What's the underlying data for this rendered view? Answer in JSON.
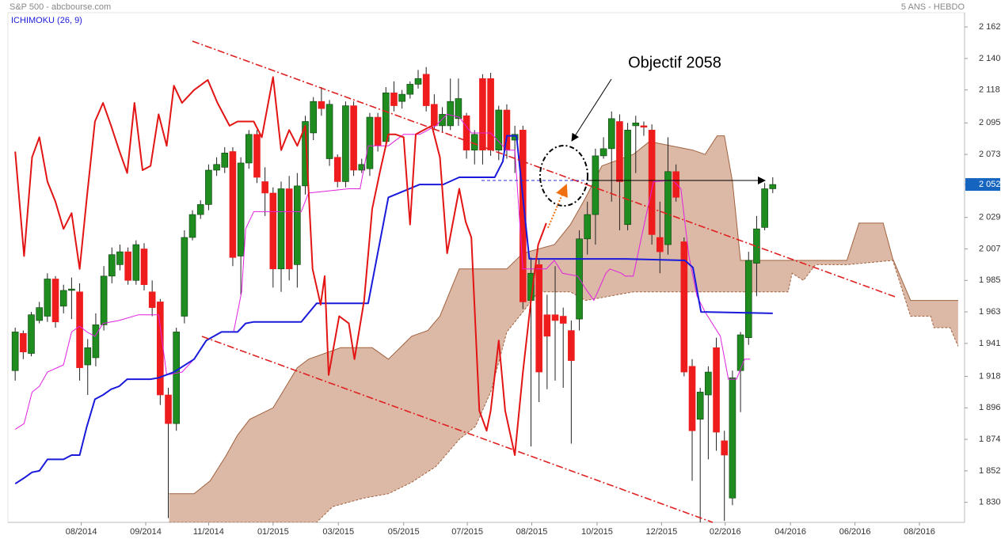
{
  "chart_data": {
    "type": "candlestick",
    "title": "S&P 500 - abcbourse.com",
    "subtitle": "5 ANS - HEBDO",
    "indicator": "ICHIMOKU (26, 9)",
    "annotation": "Objectif 2058",
    "up_color": "#1e8c1e",
    "down_color": "#ee1c1c",
    "xlim": [
      -0.9,
      117.8
    ],
    "ylim": [
      1816,
      2172
    ],
    "xticks": [
      {
        "value": 8.2,
        "label": "08/2014"
      },
      {
        "value": 16.2,
        "label": "09/2014"
      },
      {
        "value": 24,
        "label": "11/2014"
      },
      {
        "value": 32,
        "label": "01/2015"
      },
      {
        "value": 40.1,
        "label": "03/2015"
      },
      {
        "value": 48.2,
        "label": "05/2015"
      },
      {
        "value": 56.1,
        "label": "07/2015"
      },
      {
        "value": 64.1,
        "label": "08/2015"
      },
      {
        "value": 72.2,
        "label": "10/2015"
      },
      {
        "value": 80.2,
        "label": "12/2015"
      },
      {
        "value": 88.1,
        "label": "02/2016"
      },
      {
        "value": 96.2,
        "label": "04/2016"
      },
      {
        "value": 104.2,
        "label": "06/2016"
      },
      {
        "value": 112.2,
        "label": "08/2016"
      }
    ],
    "yticks": [
      {
        "value": 2162,
        "label": "2 162"
      },
      {
        "value": 2140,
        "label": "2 140"
      },
      {
        "value": 2118,
        "label": "2 118"
      },
      {
        "value": 2095,
        "label": "2 095"
      },
      {
        "value": 2073,
        "label": "2 073"
      },
      {
        "value": 2052,
        "label": "2 052"
      },
      {
        "value": 2029,
        "label": "2 029"
      },
      {
        "value": 2007,
        "label": "2 007"
      },
      {
        "value": 1985,
        "label": "1 985"
      },
      {
        "value": 1963,
        "label": "1 963"
      },
      {
        "value": 1941,
        "label": "1 941"
      },
      {
        "value": 1918,
        "label": "1 918"
      },
      {
        "value": 1896,
        "label": "1 896"
      },
      {
        "value": 1874,
        "label": "1 874"
      },
      {
        "value": 1852,
        "label": "1 852"
      },
      {
        "value": 1830,
        "label": "1 830"
      }
    ],
    "last_price": {
      "value": 2052,
      "label": "2 052",
      "color": "#1565c0"
    },
    "open": [
      1922,
      1948,
      1934,
      1957,
      1960,
      1986,
      1967,
      1978,
      1977,
      1926,
      1931,
      1954,
      1988,
      1996,
      2005,
      1985,
      2007,
      1977,
      1970,
      1905,
      1885,
      1960,
      2015,
      2031,
      2038,
      2062,
      2064,
      2075,
      2002,
      2067,
      2087,
      2054,
      2046,
      1993,
      2049,
      1996,
      2051,
      2088,
      2110,
      2070,
      2071,
      2054,
      2107,
      2062,
      2063,
      2099,
      2082,
      2116,
      2110,
      2115,
      2122,
      2129,
      2108,
      2093,
      2093,
      2098,
      2100,
      2076,
      2126,
      2126,
      2076,
      2104,
      2083,
      2090,
      1971,
      1996,
      1961,
      1961,
      1960,
      1950,
      1958,
      2014,
      2031,
      2072,
      2077,
      2096,
      2024,
      2093,
      2093,
      2090,
      2015,
      2010,
      2061,
      2012,
      1925,
      1888,
      1905,
      1938,
      1873,
      1833,
      1922,
      1945,
      1997,
      2022,
      2049
    ],
    "high": [
      1952,
      1950,
      1963,
      1970,
      1990,
      1988,
      1982,
      1987,
      1983,
      1944,
      1962,
      1995,
      2008,
      2010,
      2008,
      2013,
      2011,
      1985,
      1972,
      1910,
      1952,
      2020,
      2034,
      2041,
      2066,
      2071,
      2078,
      2078,
      2071,
      2090,
      2090,
      2064,
      2050,
      2054,
      2058,
      2060,
      2100,
      2113,
      2120,
      2111,
      2073,
      2110,
      2110,
      2070,
      2102,
      2102,
      2120,
      2124,
      2118,
      2124,
      2132,
      2134,
      2115,
      2106,
      2126,
      2126,
      2102,
      2090,
      2129,
      2130,
      2107,
      2108,
      2093,
      2093,
      2001,
      2000,
      1975,
      1995,
      1966,
      1957,
      2020,
      2040,
      2077,
      2085,
      2103,
      2101,
      2095,
      2100,
      2096,
      2094,
      2040,
      2085,
      2066,
      2015,
      1930,
      1910,
      1925,
      1945,
      1880,
      1922,
      1949,
      2005,
      2030,
      2053,
      2057
    ],
    "low": [
      1915,
      1930,
      1932,
      1955,
      1956,
      1952,
      1962,
      1958,
      1915,
      1905,
      1925,
      1950,
      1983,
      1992,
      1982,
      1982,
      1978,
      1960,
      1898,
      1819,
      1880,
      1955,
      2013,
      2028,
      2034,
      2058,
      2060,
      1995,
      1975,
      2063,
      2053,
      2030,
      1980,
      1977,
      1985,
      1980,
      2045,
      2083,
      2100,
      2065,
      2050,
      2050,
      2058,
      2060,
      2058,
      2075,
      2078,
      2103,
      2105,
      2112,
      2119,
      2103,
      2090,
      2088,
      2090,
      2093,
      2070,
      2066,
      2066,
      2072,
      2069,
      2070,
      2060,
      1965,
      1869,
      1900,
      1909,
      1915,
      1910,
      1871,
      1950,
      2003,
      2010,
      2070,
      2040,
      2020,
      2020,
      2060,
      2086,
      2010,
      1990,
      2003,
      2040,
      1918,
      1845,
      1815,
      1860,
      1866,
      1817,
      1828,
      1893,
      1940,
      1974,
      2020,
      2046
    ],
    "close": [
      1949,
      1935,
      1961,
      1966,
      1986,
      1956,
      1978,
      1979,
      1924,
      1938,
      1954,
      1988,
      2003,
      2005,
      1985,
      2010,
      1982,
      1966,
      1905,
      1885,
      1949,
      2015,
      2031,
      2038,
      2062,
      2066,
      2074,
      2001,
      2067,
      2087,
      2057,
      2046,
      1993,
      2049,
      1993,
      2051,
      2096,
      2110,
      2105,
      2108,
      2054,
      2107,
      2062,
      2066,
      2099,
      2079,
      2116,
      2107,
      2115,
      2122,
      2126,
      2107,
      2093,
      2101,
      2110,
      2112,
      2076,
      2087,
      2076,
      2076,
      2104,
      2076,
      2087,
      1970,
      1990,
      1921,
      1946,
      1957,
      1955,
      1929,
      2014,
      2031,
      2072,
      2077,
      2098,
      2054,
      2090,
      2095,
      2092,
      2017,
      2005,
      2061,
      2043,
      1921,
      1880,
      1907,
      1921,
      1879,
      1863,
      1917,
      1947,
      1999,
      2021,
      2049,
      2052
    ],
    "cloud": {
      "fill": "#dcb9a6",
      "stroke": "#a0623f",
      "upper": {
        "x": [
          19.1,
          22.2,
          24.2,
          26.1,
          27.6,
          29.1,
          32,
          33.5,
          35,
          36.4,
          40.4,
          44.3,
          46.3,
          49.2,
          51.2,
          52.7,
          55.1,
          61,
          63,
          66.9,
          68.9,
          70.8,
          72.8,
          76.7,
          78.7,
          84.1,
          85.6,
          87.1,
          88,
          89,
          90,
          96.4,
          103.2,
          104.7,
          107.7,
          108.9,
          111.1,
          117
        ],
        "values": [
          1836,
          1836,
          1845,
          1862,
          1877,
          1888,
          1896,
          1910,
          1924,
          1930,
          1938,
          1938,
          1930,
          1946,
          1950,
          1960,
          1993,
          1993,
          2004,
          2010,
          2024,
          2043,
          2065,
          2073,
          2082,
          2076,
          2073,
          2086,
          2086,
          2054,
          1999,
          1999,
          1999,
          2025,
          2025,
          2000,
          1971,
          1971
        ]
      },
      "lower": {
        "x": [
          19.1,
          37.4,
          39.4,
          43.3,
          46.3,
          49.2,
          52.2,
          55.1,
          57.1,
          59,
          61,
          63,
          64.9,
          68.9,
          70.8,
          76.7,
          95.9,
          96.4,
          97.8,
          99.3,
          103.2,
          108.9,
          111.1,
          113.6,
          114,
          116,
          117
        ],
        "values": [
          1816,
          1816,
          1827,
          1833,
          1836,
          1844,
          1855,
          1874,
          1883,
          1907,
          1949,
          1963,
          1977,
          1977,
          1971,
          1977,
          1977,
          1990,
          1985,
          1996,
          1996,
          1999,
          1960,
          1960,
          1952,
          1952,
          1939
        ]
      }
    },
    "overlays": [
      {
        "color": "#e020e0",
        "width": 1,
        "x": [
          0,
          1.1,
          2.1,
          3,
          4,
          6,
          7,
          8,
          8.9,
          9.9,
          10.9,
          12.9,
          15.3,
          17.8,
          18.8,
          20.7,
          22.2,
          23.7,
          25.6,
          27.1,
          28.1,
          28.6,
          29.6,
          35.5,
          36.4,
          41.4,
          42.8,
          43.8,
          46.3,
          48.2,
          50.2,
          52.2,
          53.6,
          55.1,
          56.6,
          59,
          61,
          62,
          63,
          65.9,
          66.9,
          67.9,
          69.8,
          70.8,
          71.8,
          73.3,
          73.8,
          75.2,
          75.7,
          76.7,
          77.7,
          79.2,
          81.6,
          82.6,
          83.6,
          84.6,
          85.6,
          87.5,
          88.5,
          89.5,
          90.5,
          91.2
        ],
        "values": [
          1881,
          1885,
          1907,
          1911,
          1921,
          1926,
          1949,
          1953,
          1949,
          1946,
          1955,
          1957,
          1961,
          1961,
          1919,
          1921,
          1930,
          1943,
          1949,
          1949,
          1977,
          2021,
          2033,
          2033,
          2046,
          2049,
          2049,
          2079,
          2079,
          2087,
          2087,
          2093,
          2101,
          2099,
          2088,
          2088,
          2076,
          2076,
          1993,
          1993,
          1999,
          1990,
          1988,
          1979,
          1971,
          1990,
          1993,
          1990,
          1988,
          1988,
          2015,
          2054,
          2055,
          2049,
          2002,
          1974,
          1963,
          1946,
          1916,
          1916,
          1930,
          1930
        ]
      },
      {
        "color": "#1a1adb",
        "width": 2,
        "x": [
          0,
          1.1,
          2.1,
          3,
          4,
          6,
          7,
          8,
          8.9,
          9.9,
          10.9,
          11.9,
          12.9,
          13.9,
          16.8,
          17.8,
          19.7,
          22.2,
          23.7,
          25.6,
          27.6,
          28.6,
          29.6,
          35.5,
          37.4,
          43.8,
          46.3,
          50.2,
          53.1,
          55.1,
          59.5,
          60.5,
          61,
          62.2,
          63.8,
          75.7,
          83.1,
          84.1,
          85.1,
          94
        ],
        "values": [
          1843,
          1847,
          1851,
          1852,
          1860,
          1860,
          1863,
          1863,
          1883,
          1902,
          1905,
          1909,
          1911,
          1916,
          1916,
          1917,
          1921,
          1930,
          1943,
          1949,
          1949,
          1955,
          1956,
          1956,
          1969,
          1969,
          2043,
          2052,
          2052,
          2057,
          2057,
          2068,
          2086,
          2086,
          2000,
          2000,
          1999,
          1994,
          1963,
          1962
        ]
      },
      {
        "color": "#e31414",
        "width": 2,
        "x": [
          0,
          1.1,
          2.1,
          3,
          4,
          5,
          6,
          7,
          8,
          8.9,
          9.9,
          10.9,
          11.9,
          12.9,
          13.9,
          14.8,
          15.8,
          16.8,
          17.8,
          18.8,
          19.7,
          20.7,
          22.2,
          23.9,
          25.1,
          26.6,
          27.6,
          29.6,
          30.6,
          32,
          33,
          34,
          35,
          36,
          36.9,
          37.9,
          38.4,
          38.9,
          40.2,
          41.4,
          42.1,
          43.3,
          44.3,
          45.3,
          46.3,
          47.2,
          48.2,
          49,
          49.7,
          50.7,
          51.7,
          52.7,
          53.6,
          55.1,
          55.9,
          56.6,
          57.6,
          58.5,
          59,
          60,
          60.8,
          62,
          63,
          64,
          64.9,
          65.9
        ],
        "values": [
          2075,
          2002,
          2071,
          2085,
          2054,
          2040,
          2021,
          2032,
          1993,
          2043,
          2096,
          2109,
          2093,
          2076,
          2060,
          2109,
          2062,
          2065,
          2101,
          2079,
          2121,
          2109,
          2118,
          2125,
          2109,
          2093,
          2096,
          2096,
          2085,
          2127,
          2076,
          2090,
          2079,
          2093,
          1993,
          1968,
          1988,
          1919,
          1960,
          1955,
          1930,
          1971,
          2035,
          2062,
          2087,
          2087,
          2085,
          2024,
          2087,
          2090,
          2093,
          2071,
          2004,
          2049,
          2026,
          2015,
          1894,
          1880,
          1894,
          1943,
          1894,
          1863,
          1921,
          1971,
          2010,
          2025
        ]
      }
    ]
  }
}
